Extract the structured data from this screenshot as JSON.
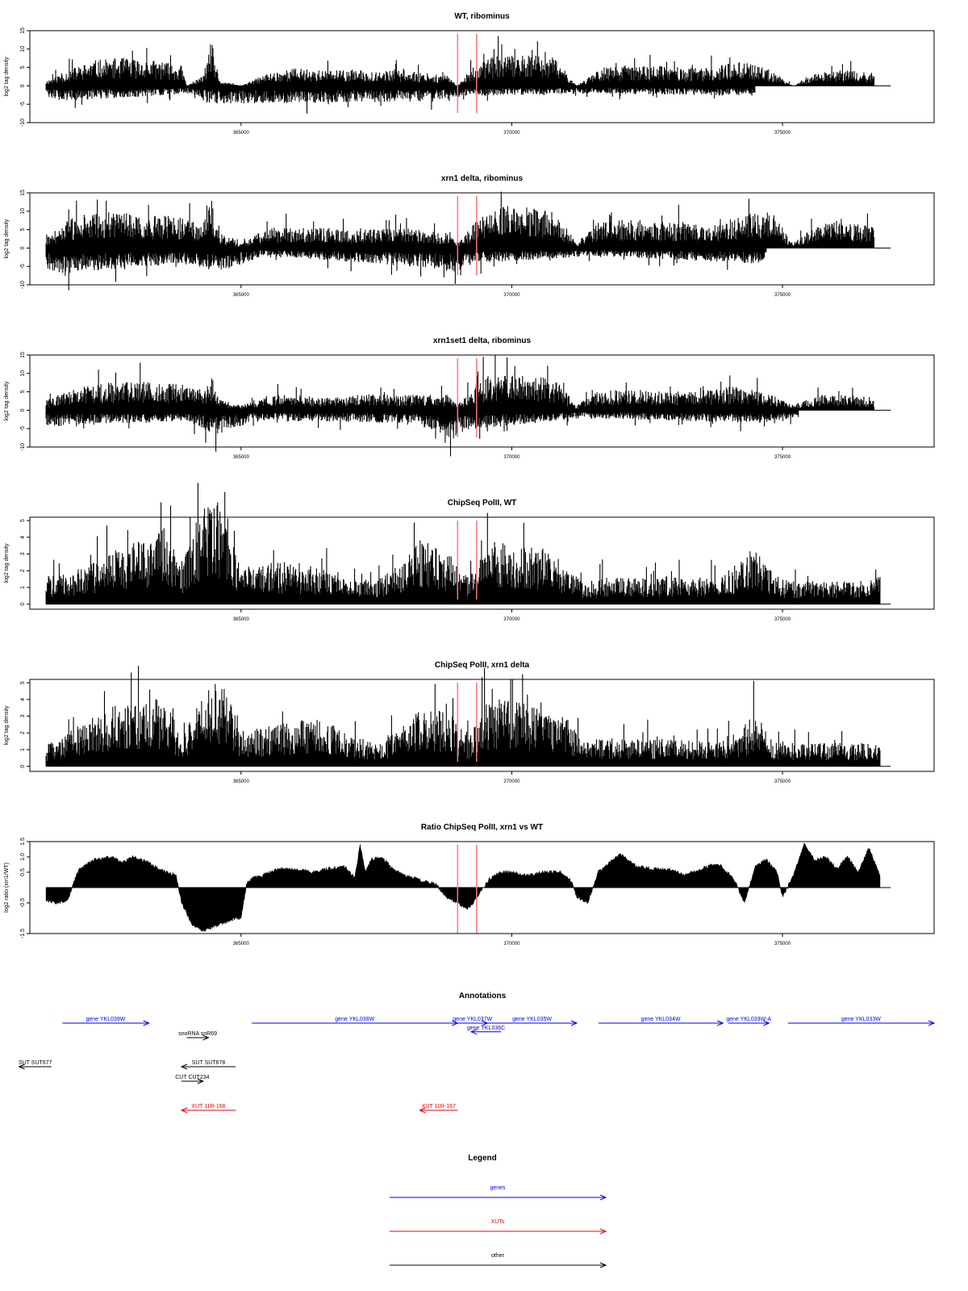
{
  "chart_data": [
    {
      "type": "bar",
      "title": "WT, ribominus",
      "ylabel": "log2 tag density",
      "xlim": [
        361100,
        377800
      ],
      "ylim": [
        -10,
        15
      ],
      "x_ticks": [
        365000,
        370000,
        375000
      ],
      "y_ticks": [
        15,
        10,
        5,
        0,
        -5,
        -10
      ],
      "markers": [
        369000,
        369350
      ],
      "marker_color": "#ff7777",
      "bar_color": "#000000",
      "series": [
        {
          "name": "plus",
          "sign": 1,
          "x": [
            361400,
            361700,
            361900,
            362300,
            362800,
            363400,
            363900,
            364000,
            364300,
            364450,
            364600,
            365000,
            365500,
            366000,
            366500,
            367200,
            368000,
            368800,
            369000,
            369400,
            369800,
            370300,
            370800,
            371200,
            371600,
            372100,
            372600,
            373200,
            373700,
            374200,
            374800,
            375200,
            375700,
            376200,
            376700
          ],
          "values": [
            1,
            2.5,
            3.5,
            5,
            5.5,
            5,
            4,
            0,
            2,
            9,
            1,
            0,
            2.5,
            3.5,
            3,
            3,
            3,
            2,
            0,
            5,
            6,
            6,
            5.5,
            0,
            3.5,
            4,
            4,
            3.5,
            3.5,
            5,
            3,
            0,
            3,
            3,
            2.5
          ]
        },
        {
          "name": "minus",
          "sign": -1,
          "x": [
            361400,
            361700,
            364100,
            364400,
            368800,
            369100,
            371300,
            374500
          ],
          "values": [
            2,
            3,
            1.5,
            3.5,
            3,
            2,
            1.5,
            2
          ]
        }
      ]
    },
    {
      "type": "bar",
      "title": "xrn1 delta, ribominus",
      "ylabel": "log2 tag density",
      "xlim": [
        361100,
        377800
      ],
      "ylim": [
        -10,
        15
      ],
      "x_ticks": [
        365000,
        370000,
        375000
      ],
      "y_ticks": [
        15,
        10,
        5,
        0,
        -5,
        -10
      ],
      "markers": [
        369000,
        369350
      ],
      "marker_color": "#ff7777",
      "bar_color": "#000000",
      "series": [
        {
          "name": "plus",
          "sign": 1,
          "x": [
            361400,
            361800,
            362300,
            362800,
            363400,
            363900,
            364300,
            364450,
            364600,
            365000,
            365500,
            366000,
            366500,
            367200,
            368000,
            368800,
            369000,
            369400,
            369800,
            370300,
            370800,
            371200,
            371600,
            372100,
            372600,
            373200,
            373700,
            374200,
            374800,
            375200,
            375700,
            376200,
            376700
          ],
          "values": [
            2,
            5.5,
            7,
            7,
            6.5,
            6,
            5,
            10,
            3,
            1,
            4,
            4,
            4,
            3.5,
            4,
            3,
            1,
            6,
            8,
            8,
            7,
            1,
            5,
            5.5,
            5.5,
            5,
            4.5,
            6.5,
            7,
            1,
            5,
            5,
            4.5
          ]
        },
        {
          "name": "minus",
          "sign": -1,
          "x": [
            361400,
            361700,
            363900,
            364400,
            364800,
            365400,
            368700,
            369000,
            369300,
            371500,
            374400,
            374700
          ],
          "values": [
            4,
            5,
            3,
            4,
            4,
            1.5,
            4,
            5,
            3,
            1.5,
            3,
            2.5
          ]
        }
      ]
    },
    {
      "type": "bar",
      "title": "xrn1set1 delta, ribominus",
      "ylabel": "log2 tag density",
      "xlim": [
        361100,
        377800
      ],
      "ylim": [
        -10,
        15
      ],
      "x_ticks": [
        365000,
        370000,
        375000
      ],
      "y_ticks": [
        15,
        10,
        5,
        0,
        -5,
        -10
      ],
      "markers": [
        369000,
        369350
      ],
      "marker_color": "#ff7777",
      "bar_color": "#000000",
      "series": [
        {
          "name": "plus",
          "sign": 1,
          "x": [
            361400,
            361800,
            362300,
            362800,
            363400,
            363900,
            364300,
            364450,
            364600,
            365000,
            365500,
            366000,
            366500,
            367200,
            368000,
            368800,
            369000,
            369400,
            369800,
            370300,
            370800,
            371200,
            371600,
            372100,
            372600,
            373200,
            373700,
            374200,
            374800,
            375200,
            375700,
            376200,
            376700
          ],
          "values": [
            2,
            4,
            5,
            5.5,
            5.5,
            5,
            4,
            7,
            2,
            1,
            3,
            3,
            2.5,
            3,
            3,
            3,
            1,
            6,
            7,
            7,
            6,
            1,
            4,
            4,
            4,
            3.5,
            4,
            5,
            3,
            1,
            3,
            3,
            2.5
          ]
        },
        {
          "name": "minus",
          "sign": -1,
          "x": [
            361400,
            361700,
            364000,
            364500,
            365300,
            368200,
            368900,
            369100,
            371300,
            374500,
            375300
          ],
          "values": [
            3.5,
            3,
            2,
            5,
            2,
            2.5,
            6,
            4,
            1.5,
            2.5,
            1.5
          ]
        }
      ]
    },
    {
      "type": "bar",
      "title": "ChipSeq PolII, WT",
      "ylabel": "log2 tag density",
      "xlim": [
        361100,
        377800
      ],
      "ylim": [
        -0.3,
        5.2
      ],
      "x_ticks": [
        365000,
        370000,
        375000
      ],
      "y_ticks": [
        5,
        4,
        3,
        2,
        1,
        0
      ],
      "markers": [
        369000,
        369350
      ],
      "marker_color": "#ff7777",
      "bar_color": "#000000",
      "series": [
        {
          "name": "plus",
          "sign": 1,
          "x": [
            361400,
            361800,
            362300,
            362800,
            363300,
            363600,
            363900,
            364200,
            364500,
            364700,
            365000,
            365500,
            366000,
            366500,
            367000,
            367500,
            368000,
            368300,
            368600,
            368900,
            369200,
            369500,
            369800,
            370200,
            370600,
            371000,
            371300,
            371800,
            372300,
            372800,
            373300,
            373800,
            374200,
            374500,
            374800,
            375100,
            375500,
            376000,
            376500,
            376800
          ],
          "values": [
            1.2,
            1.3,
            1.8,
            2.5,
            2.8,
            3.3,
            1.5,
            3.8,
            4.6,
            4.2,
            1.6,
            1.8,
            1.8,
            1.5,
            1.0,
            1.0,
            1.8,
            2.8,
            2.6,
            2.0,
            1.2,
            2.6,
            2.7,
            2.5,
            2.4,
            1.5,
            1.0,
            1.2,
            1.1,
            1.2,
            1.1,
            1.2,
            1.8,
            2.5,
            1.4,
            1.0,
            1.0,
            1.0,
            1.0,
            1.2
          ]
        }
      ]
    },
    {
      "type": "bar",
      "title": "ChipSeq PolII, xrn1 delta",
      "ylabel": "log2 tag density",
      "xlim": [
        361100,
        377800
      ],
      "ylim": [
        -0.3,
        5.2
      ],
      "x_ticks": [
        365000,
        370000,
        375000
      ],
      "y_ticks": [
        5,
        4,
        3,
        2,
        1,
        0
      ],
      "markers": [
        369000,
        369350
      ],
      "marker_color": "#ff7777",
      "bar_color": "#000000",
      "series": [
        {
          "name": "plus",
          "sign": 1,
          "x": [
            361400,
            361800,
            362300,
            362800,
            363300,
            363600,
            363900,
            364200,
            364500,
            364700,
            365000,
            365500,
            366000,
            366500,
            367000,
            367500,
            368000,
            368300,
            368600,
            368900,
            369200,
            369500,
            369800,
            370200,
            370600,
            371000,
            371300,
            371800,
            372300,
            372800,
            373300,
            373800,
            374200,
            374500,
            374800,
            375100,
            375500,
            376000,
            376500,
            376800
          ],
          "values": [
            0.9,
            1.5,
            2.2,
            2.8,
            2.8,
            3.0,
            1.2,
            2.8,
            3.6,
            3.4,
            1.5,
            1.7,
            2.0,
            2.0,
            1.4,
            1.0,
            1.8,
            2.4,
            2.5,
            2.2,
            1.2,
            2.6,
            3.0,
            2.7,
            2.4,
            2.2,
            1.0,
            1.3,
            1.2,
            1.2,
            1.1,
            1.0,
            1.5,
            2.3,
            1.2,
            1.0,
            1.0,
            1.0,
            1.0,
            1.0
          ]
        }
      ]
    },
    {
      "type": "area",
      "title": "Ratio ChipSeq PolII, xrn1 vs WT",
      "ylabel": "log2 ratio (xrn1/WT)",
      "xlim": [
        361100,
        377800
      ],
      "ylim": [
        -1.5,
        1.5
      ],
      "x_ticks": [
        365000,
        370000,
        375000
      ],
      "y_ticks": [
        1.5,
        1.0,
        0.5,
        -0.5,
        -1.5
      ],
      "y_tick_labels": [
        "1.5",
        "1.0",
        "0.5",
        "-0.5",
        "-1.5"
      ],
      "markers": [
        369000,
        369350
      ],
      "marker_color": "#ff7777",
      "bar_color": "#000000",
      "baseline": 0,
      "series": [
        {
          "name": "ratio",
          "x": [
            361400,
            361600,
            361800,
            361900,
            362000,
            362300,
            362600,
            362800,
            363000,
            363300,
            363600,
            363800,
            363900,
            364100,
            364300,
            364600,
            364900,
            365000,
            365100,
            365200,
            365400,
            365700,
            366000,
            366300,
            366600,
            366900,
            367100,
            367200,
            367300,
            367400,
            367600,
            367800,
            368000,
            368200,
            368400,
            368600,
            368800,
            369000,
            369200,
            369400,
            369600,
            369800,
            370000,
            370300,
            370600,
            370900,
            371100,
            371200,
            371400,
            371600,
            371800,
            372000,
            372300,
            372600,
            372900,
            373200,
            373500,
            373800,
            374100,
            374300,
            374500,
            374700,
            374900,
            375000,
            375200,
            375400,
            375600,
            375800,
            376000,
            376200,
            376400,
            376600,
            376800
          ],
          "values": [
            -0.4,
            -0.5,
            -0.4,
            0.1,
            0.6,
            0.9,
            1.0,
            0.8,
            1.0,
            0.8,
            0.5,
            0.4,
            -0.5,
            -1.2,
            -1.4,
            -1.2,
            -1.0,
            -1.0,
            0.1,
            0.3,
            0.4,
            0.6,
            0.6,
            0.5,
            0.6,
            0.7,
            0.3,
            1.4,
            0.5,
            0.9,
            1.0,
            0.6,
            0.4,
            0.3,
            0.2,
            0.1,
            -0.3,
            -0.5,
            -0.7,
            -0.2,
            0.3,
            0.5,
            0.5,
            0.4,
            0.5,
            0.5,
            0.2,
            -0.3,
            -0.5,
            0.5,
            0.8,
            1.1,
            0.7,
            0.6,
            0.6,
            0.4,
            0.6,
            0.8,
            0.3,
            -0.5,
            0.7,
            0.9,
            0.5,
            -0.3,
            0.4,
            1.4,
            0.9,
            1.0,
            0.6,
            1.0,
            0.5,
            1.3,
            0.4
          ]
        }
      ]
    }
  ],
  "annotations": {
    "title": "Annotations",
    "features": [
      {
        "label": "gene YKL039W",
        "category": "genes",
        "start": 361700,
        "end": 363300,
        "row": 0
      },
      {
        "label": "gene YKL038W",
        "category": "genes",
        "start": 365200,
        "end": 369000,
        "row": 0
      },
      {
        "label": "gene YKL037W",
        "category": "genes",
        "start": 369000,
        "end": 369550,
        "row": 0
      },
      {
        "label": "gene YKL036C",
        "category": "genes",
        "start": 369800,
        "end": 369250,
        "row": 0.6
      },
      {
        "label": "gene YKL035W",
        "category": "genes",
        "start": 369550,
        "end": 371200,
        "row": 0
      },
      {
        "label": "gene YKL034W",
        "category": "genes",
        "start": 371600,
        "end": 373900,
        "row": 0
      },
      {
        "label": "gene YKL033W-A",
        "category": "genes",
        "start": 374000,
        "end": 374750,
        "row": 0
      },
      {
        "label": "gene YKL033W",
        "category": "genes",
        "start": 375100,
        "end": 377800,
        "row": 0
      },
      {
        "label": "snoRNA snR69",
        "category": "other",
        "start": 364000,
        "end": 364400,
        "row": 1
      },
      {
        "label": "SUT SUT677",
        "category": "other",
        "start": 361500,
        "end": 360900,
        "row": 3
      },
      {
        "label": "SUT SUT678",
        "category": "other",
        "start": 364900,
        "end": 363900,
        "row": 3
      },
      {
        "label": "CUT CUT234",
        "category": "other",
        "start": 363900,
        "end": 364300,
        "row": 4
      },
      {
        "label": "XUT 11R-166",
        "category": "XUTs",
        "start": 364900,
        "end": 363900,
        "row": 6
      },
      {
        "label": "XUT 11R-167",
        "category": "XUTs",
        "start": 369000,
        "end": 368300,
        "row": 6
      }
    ]
  },
  "legend": {
    "title": "Legend",
    "entries": [
      {
        "label": "genes",
        "color": "#0000ee"
      },
      {
        "label": "XUTs",
        "color": "#ee0000"
      },
      {
        "label": "other",
        "color": "#000000"
      }
    ]
  }
}
